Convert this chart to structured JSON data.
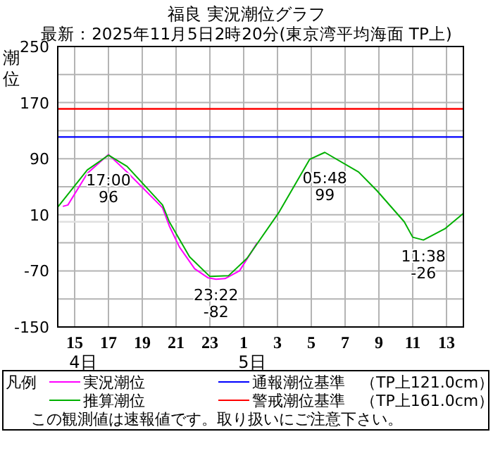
{
  "chart_data": {
    "type": "line",
    "title": "福良 実況潮位グラフ",
    "subtitle": "最新：2025年11月5日2時20分(東京湾平均海面 TP上)",
    "ylabel": "潮位",
    "legend_title": "凡例",
    "legend": "bottom",
    "grid": true,
    "line_style": "solid",
    "xlim": [
      "2025-11-04T14:00",
      "2025-11-05T14:00"
    ],
    "xticks": [
      {
        "value": "2025-11-04T15:00",
        "label": "15"
      },
      {
        "value": "2025-11-04T17:00",
        "label": "17"
      },
      {
        "value": "2025-11-04T19:00",
        "label": "19"
      },
      {
        "value": "2025-11-04T21:00",
        "label": "21"
      },
      {
        "value": "2025-11-04T23:00",
        "label": "23"
      },
      {
        "value": "2025-11-05T01:00",
        "label": "1"
      },
      {
        "value": "2025-11-05T03:00",
        "label": "3"
      },
      {
        "value": "2025-11-05T05:00",
        "label": "5"
      },
      {
        "value": "2025-11-05T07:00",
        "label": "7"
      },
      {
        "value": "2025-11-05T09:00",
        "label": "9"
      },
      {
        "value": "2025-11-05T11:00",
        "label": "11"
      },
      {
        "value": "2025-11-05T13:00",
        "label": "13"
      }
    ],
    "ylim": [
      -150,
      250
    ],
    "yticks": [
      {
        "value": 250,
        "label": "250"
      },
      {
        "value": 210,
        "label": null
      },
      {
        "value": 170,
        "label": "170"
      },
      {
        "value": 130,
        "label": null
      },
      {
        "value": 90,
        "label": "90"
      },
      {
        "value": 50,
        "label": null
      },
      {
        "value": 10,
        "label": "10"
      },
      {
        "value": -30,
        "label": null
      },
      {
        "value": -70,
        "label": "-70"
      },
      {
        "value": -110,
        "label": null
      },
      {
        "value": -150,
        "label": "-150"
      }
    ],
    "series": [
      {
        "name": "実況潮位",
        "color": "#ff00ff",
        "x": [
          "2025-11-04T14:18",
          "2025-11-04T14:36",
          "2025-11-04T15:45",
          "2025-11-04T17:00",
          "2025-11-04T18:06",
          "2025-11-04T20:12",
          "2025-11-04T20:36",
          "2025-11-04T21:12",
          "2025-11-04T22:06",
          "2025-11-04T22:54",
          "2025-11-04T23:22",
          "2025-11-04T23:54",
          "2025-11-05T00:45",
          "2025-11-05T01:48"
        ],
        "values": [
          22,
          24,
          69,
          96,
          71,
          20,
          -6,
          -36,
          -67,
          -80,
          -82,
          -81,
          -70,
          -30
        ]
      },
      {
        "name": "推算潮位",
        "color": "#00b000",
        "x": [
          "2025-11-04T14:00",
          "2025-11-04T15:45",
          "2025-11-04T17:00",
          "2025-11-04T18:06",
          "2025-11-04T20:12",
          "2025-11-04T20:36",
          "2025-11-04T21:48",
          "2025-11-04T23:00",
          "2025-11-05T00:06",
          "2025-11-05T01:12",
          "2025-11-05T03:06",
          "2025-11-05T04:54",
          "2025-11-05T05:48",
          "2025-11-05T07:48",
          "2025-11-05T08:54",
          "2025-11-05T10:30",
          "2025-11-05T11:00",
          "2025-11-05T11:38",
          "2025-11-05T12:54",
          "2025-11-05T14:00"
        ],
        "values": [
          21,
          74,
          95,
          79,
          24,
          0,
          -50,
          -78,
          -77,
          -52,
          14,
          89,
          99,
          71,
          44,
          0,
          -22,
          -26,
          -10,
          12
        ]
      }
    ],
    "ref_lines": [
      {
        "axis": "y",
        "value": 121,
        "label": "通報潮位基準　（TP上121.0cm）",
        "color": "#0000ff"
      },
      {
        "axis": "y",
        "value": 161,
        "label": "警戒潮位基準　（TP上161.0cm）",
        "color": "#ff0000"
      },
      {
        "axis": "y",
        "value": 0,
        "color": "#e0e0e0"
      }
    ],
    "annotations": [
      {
        "text": "17:00\n96",
        "x": "2025-11-04T17:00",
        "y": 96
      },
      {
        "text": "23:22\n-82",
        "x": "2025-11-04T23:22",
        "y": -82
      },
      {
        "text": "05:48\n99",
        "x": "2025-11-05T05:48",
        "y": 99
      },
      {
        "text": "11:38\n-26",
        "x": "2025-11-05T11:38",
        "y": -26
      },
      "4日",
      "5日",
      "この観測値は速報値です。取り扱いにご注意下さい。"
    ]
  }
}
